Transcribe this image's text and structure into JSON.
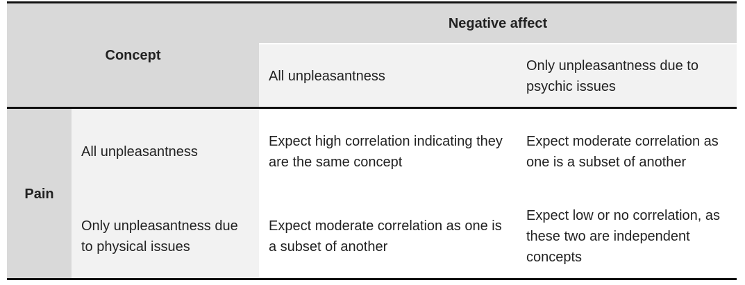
{
  "header": {
    "concept": "Concept",
    "group": "Negative affect",
    "columns": [
      "All unpleasantness",
      "Only unpleasantness due to psychic issues"
    ]
  },
  "body": {
    "group": "Pain",
    "rows": [
      {
        "label": "All unpleasantness",
        "cells": [
          "Expect high correlation indicating they are the same concept",
          "Expect moderate correlation as one is a subset of another"
        ]
      },
      {
        "label": "Only unpleasantness due to physical issues",
        "cells": [
          "Expect moderate correlation as one is a subset of another",
          "Expect low or no correlation, as these two are independent concepts"
        ]
      }
    ]
  }
}
